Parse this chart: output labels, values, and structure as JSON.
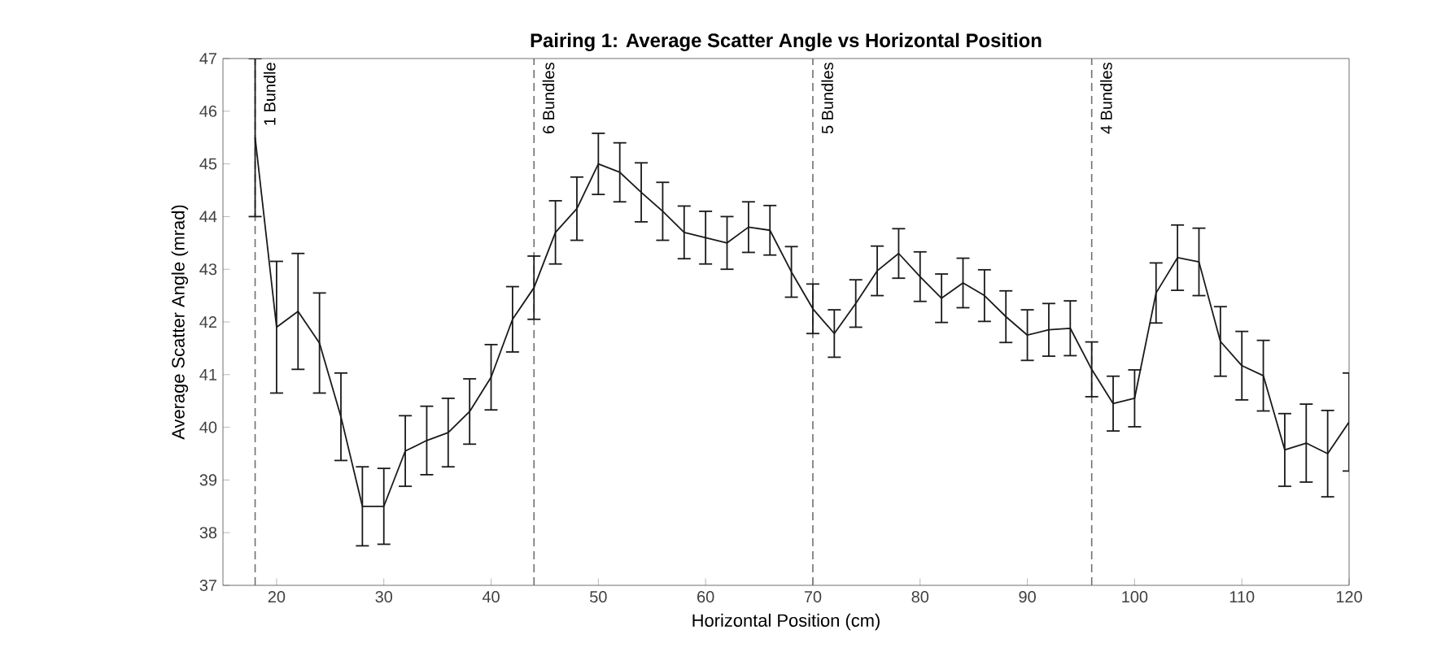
{
  "chart_data": {
    "type": "line",
    "title": "Pairing 1: Average Scatter Angle vs Horizontal Position",
    "xlabel": "Horizontal Position (cm)",
    "ylabel": "Average Scatter Angle (mrad)",
    "x": [
      18,
      20,
      22,
      24,
      26,
      28,
      30,
      32,
      34,
      36,
      38,
      40,
      42,
      44,
      46,
      48,
      50,
      52,
      54,
      56,
      58,
      60,
      62,
      64,
      66,
      68,
      70,
      72,
      74,
      76,
      78,
      80,
      82,
      84,
      86,
      88,
      90,
      92,
      94,
      96,
      98,
      100,
      102,
      104,
      106,
      108,
      110,
      112,
      114,
      116,
      118,
      120
    ],
    "series": [
      {
        "color": "#1a1a1a",
        "values": [
          45.5,
          41.9,
          42.2,
          41.6,
          40.2,
          38.5,
          38.5,
          39.55,
          39.75,
          39.9,
          40.3,
          40.95,
          42.05,
          42.65,
          43.7,
          44.15,
          45.0,
          44.84,
          44.46,
          44.1,
          43.7,
          43.6,
          43.5,
          43.8,
          43.74,
          42.95,
          42.25,
          41.78,
          42.35,
          42.97,
          43.3,
          42.86,
          42.45,
          42.74,
          42.5,
          42.1,
          41.75,
          41.85,
          41.88,
          41.1,
          40.45,
          40.55,
          42.55,
          43.22,
          43.14,
          41.63,
          41.17,
          40.98,
          39.57,
          39.7,
          39.5,
          40.1
        ],
        "errors": [
          1.5,
          1.25,
          1.1,
          0.95,
          0.83,
          0.75,
          0.72,
          0.67,
          0.65,
          0.65,
          0.62,
          0.62,
          0.62,
          0.6,
          0.6,
          0.6,
          0.58,
          0.56,
          0.56,
          0.55,
          0.5,
          0.5,
          0.5,
          0.48,
          0.47,
          0.48,
          0.47,
          0.45,
          0.45,
          0.47,
          0.47,
          0.47,
          0.46,
          0.47,
          0.49,
          0.49,
          0.48,
          0.5,
          0.52,
          0.52,
          0.52,
          0.54,
          0.57,
          0.62,
          0.64,
          0.66,
          0.65,
          0.67,
          0.69,
          0.74,
          0.82,
          0.93
        ]
      }
    ],
    "xlim": [
      15,
      120
    ],
    "ylim": [
      37,
      47
    ],
    "xticks": [
      20,
      30,
      40,
      50,
      60,
      70,
      80,
      90,
      100,
      110,
      120
    ],
    "yticks": [
      37,
      38,
      39,
      40,
      41,
      42,
      43,
      44,
      45,
      46,
      47
    ],
    "ref_lines": [
      {
        "axis": "x",
        "value": 18,
        "label": "1 Bundle",
        "color": "#707070",
        "line_style": "dashed"
      },
      {
        "axis": "x",
        "value": 44,
        "label": "6 Bundles",
        "color": "#707070",
        "line_style": "dashed"
      },
      {
        "axis": "x",
        "value": 70,
        "label": "5 Bundles",
        "color": "#707070",
        "line_style": "dashed"
      },
      {
        "axis": "x",
        "value": 96,
        "label": "4 Bundles",
        "color": "#707070",
        "line_style": "dashed"
      }
    ],
    "grid": false,
    "marker": "none",
    "line_style": "solid"
  }
}
